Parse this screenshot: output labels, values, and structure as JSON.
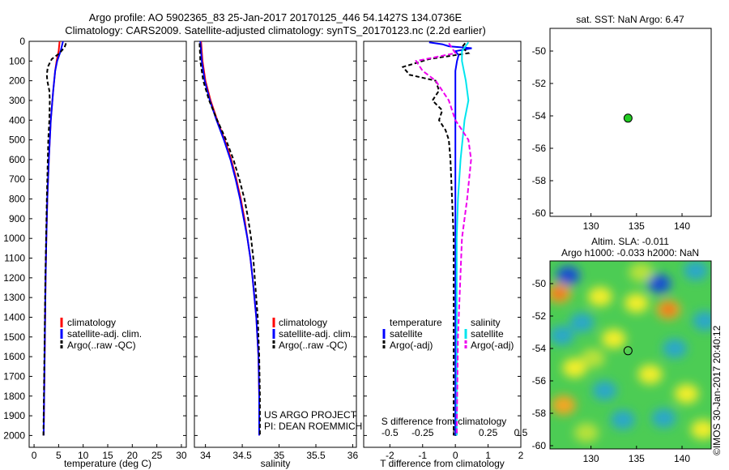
{
  "header": {
    "line1": "Argo profile: AO 5902365_83 25-Jan-2017 20170125_446 54.1427S 134.0736E",
    "line2": "Climatology: CARS2009. Satellite-adjusted climatology: synTS_20170123.nc (2.2d earlier)"
  },
  "colors": {
    "clim": "#ff0000",
    "sat": "#0000ff",
    "argo": "#000000",
    "sal_sat": "#00e5ee",
    "sal_argo": "#ee00ee",
    "dot": "#22cc22"
  },
  "chart_data": [
    {
      "type": "line",
      "id": "temperature",
      "xlabel": "temperature (deg C)",
      "xlim": [
        -1,
        31
      ],
      "xticks": [
        "0",
        "5",
        "10",
        "15",
        "20",
        "25",
        "30"
      ],
      "xtick_values": [
        0,
        5,
        10,
        15,
        20,
        25,
        30
      ],
      "ylim": [
        0,
        2060
      ],
      "yticks": [
        "0",
        "100",
        "200",
        "300",
        "400",
        "500",
        "600",
        "700",
        "800",
        "900",
        "1000",
        "1100",
        "1200",
        "1300",
        "1400",
        "1500",
        "1600",
        "1700",
        "1800",
        "1900",
        "2000"
      ],
      "ytick_values": [
        0,
        100,
        200,
        300,
        400,
        500,
        600,
        700,
        800,
        900,
        1000,
        1100,
        1200,
        1300,
        1400,
        1500,
        1600,
        1700,
        1800,
        1900,
        2000
      ],
      "legend": [
        "climatology",
        "satellite-adj. clim.",
        "Argo(..raw -QC)"
      ],
      "series": [
        {
          "name": "climatology",
          "color": "#ff0000",
          "dash": "",
          "depth": [
            0,
            50,
            100,
            150,
            250,
            400,
            600,
            800,
            1000,
            1200,
            1500,
            1800,
            2000
          ],
          "values": [
            5.2,
            5.0,
            4.6,
            4.3,
            3.9,
            3.4,
            3.0,
            2.7,
            2.5,
            2.35,
            2.2,
            2.05,
            1.95
          ]
        },
        {
          "name": "satellite-adj. clim.",
          "color": "#0000ff",
          "dash": "",
          "depth": [
            0,
            50,
            100,
            150,
            250,
            400,
            600,
            800,
            1000,
            1200,
            1500,
            1800,
            2000
          ],
          "values": [
            5.9,
            5.4,
            4.7,
            4.3,
            3.9,
            3.4,
            3.0,
            2.7,
            2.5,
            2.35,
            2.2,
            2.05,
            1.95
          ]
        },
        {
          "name": "Argo(..raw -QC)",
          "color": "#000000",
          "dash": "5,3",
          "depth": [
            10,
            30,
            60,
            90,
            130,
            170,
            200,
            250,
            300,
            400,
            500,
            600,
            800,
            1000,
            1200,
            1500,
            1800,
            2000
          ],
          "values": [
            6.5,
            6.2,
            5.2,
            3.6,
            2.8,
            2.6,
            2.7,
            3.1,
            3.2,
            3.1,
            2.9,
            2.8,
            2.6,
            2.45,
            2.3,
            2.15,
            2.0,
            1.9
          ]
        }
      ]
    },
    {
      "type": "line",
      "id": "salinity",
      "xlabel": "salinity",
      "xlim": [
        33.85,
        36.05
      ],
      "xticks": [
        "34",
        "34.5",
        "35",
        "35.5",
        "36"
      ],
      "xtick_values": [
        34,
        34.5,
        35,
        35.5,
        36
      ],
      "ylim": [
        0,
        2060
      ],
      "legend": [
        "climatology",
        "satellite-adj. clim.",
        "Argo(..raw -QC)"
      ],
      "series": [
        {
          "name": "climatology",
          "color": "#ff0000",
          "dash": "",
          "depth": [
            0,
            100,
            200,
            300,
            400,
            500,
            600,
            700,
            800,
            900,
            1000,
            1100,
            1200,
            1400,
            1600,
            1800,
            2000
          ],
          "values": [
            33.94,
            33.96,
            34.0,
            34.07,
            34.16,
            34.26,
            34.35,
            34.42,
            34.48,
            34.53,
            34.57,
            34.61,
            34.64,
            34.69,
            34.72,
            34.73,
            34.73
          ]
        },
        {
          "name": "satellite-adj. clim.",
          "color": "#0000ff",
          "dash": "",
          "depth": [
            0,
            100,
            200,
            300,
            400,
            500,
            600,
            700,
            800,
            900,
            1000,
            1100,
            1200,
            1400,
            1600,
            1800,
            2000
          ],
          "values": [
            33.93,
            33.95,
            33.99,
            34.06,
            34.15,
            34.25,
            34.34,
            34.41,
            34.47,
            34.52,
            34.57,
            34.61,
            34.64,
            34.69,
            34.72,
            34.73,
            34.73
          ]
        },
        {
          "name": "Argo(..raw -QC)",
          "color": "#000000",
          "dash": "5,3",
          "depth": [
            10,
            100,
            200,
            300,
            400,
            500,
            600,
            700,
            800,
            900,
            1000,
            1100,
            1200,
            1400,
            1600,
            1800,
            2000
          ],
          "values": [
            33.92,
            33.93,
            33.97,
            34.05,
            34.16,
            34.28,
            34.38,
            34.46,
            34.53,
            34.58,
            34.62,
            34.65,
            34.67,
            34.71,
            34.73,
            34.74,
            34.74
          ]
        }
      ]
    },
    {
      "type": "line",
      "id": "differences",
      "xlabel": "T difference from climatology",
      "xlabel2": "S difference from climatology",
      "xlim": [
        -2.8,
        2.0
      ],
      "xticks": [
        "-2",
        "-1",
        "0",
        "1",
        "2"
      ],
      "xtick_values": [
        -2,
        -1,
        0,
        1,
        2
      ],
      "s_xticks": [
        "-0.5",
        "-0.25",
        "0",
        "0.25",
        "0.5"
      ],
      "s_xtick_values": [
        -0.5,
        -0.25,
        0,
        0.25,
        0.5
      ],
      "ylim": [
        0,
        2060
      ],
      "legend_temperature": {
        "heading": "temperature",
        "items": [
          "satellite",
          "Argo(-adj)"
        ]
      },
      "legend_salinity": {
        "heading": "salinity",
        "items": [
          "satellite",
          "Argo(-adj)"
        ]
      },
      "series": [
        {
          "name": "T satellite",
          "color": "#0000ff",
          "dash": "",
          "depth": [
            5,
            15,
            25,
            35,
            50,
            70,
            100,
            150,
            200,
            300,
            500,
            700,
            1000,
            1500,
            2000
          ],
          "values": [
            -0.8,
            -0.4,
            -0.2,
            0.5,
            0.0,
            0.1,
            0.05,
            0.0,
            0.0,
            0.0,
            0.0,
            0.0,
            0.0,
            0.0,
            0.0
          ]
        },
        {
          "name": "T Argo(-adj)",
          "color": "#000000",
          "dash": "5,3",
          "depth": [
            10,
            30,
            60,
            90,
            100,
            130,
            170,
            200,
            250,
            300,
            350,
            400,
            450,
            500,
            600,
            800,
            1000,
            1500,
            2000
          ],
          "values": [
            0.3,
            0.2,
            0.4,
            -0.8,
            -1.0,
            -1.6,
            -1.4,
            -0.6,
            -0.5,
            -0.7,
            -0.4,
            -0.5,
            -0.3,
            -0.2,
            -0.15,
            -0.1,
            -0.05,
            -0.05,
            -0.05
          ]
        },
        {
          "name": "S satellite",
          "color": "#00e5ee",
          "dash": "",
          "depth": [
            5,
            50,
            100,
            200,
            300,
            400,
            600,
            800,
            1000,
            1500,
            2000
          ],
          "values": [
            0.1,
            0.05,
            0.05,
            0.08,
            0.1,
            0.07,
            0.04,
            0.02,
            0.01,
            0.01,
            0.01
          ]
        },
        {
          "name": "S Argo(-adj)",
          "color": "#ee00ee",
          "dash": "6,3",
          "depth": [
            10,
            60,
            100,
            150,
            200,
            300,
            400,
            450,
            500,
            600,
            800,
            1000,
            1500,
            2000
          ],
          "values": [
            -0.05,
            0.0,
            -0.3,
            -0.25,
            -0.15,
            -0.05,
            0.0,
            0.05,
            0.1,
            0.12,
            0.09,
            0.05,
            0.02,
            0.01
          ]
        }
      ]
    },
    {
      "type": "scatter",
      "id": "sst-map",
      "title": "sat. SST: NaN Argo: 6.47",
      "xlim": [
        125.5,
        143.2
      ],
      "ylim": [
        -60.2,
        -48.6
      ],
      "xticks": [
        "130",
        "135",
        "140"
      ],
      "xtick_values": [
        130,
        135,
        140
      ],
      "yticks": [
        "-50",
        "-52",
        "-54",
        "-56",
        "-58",
        "-60"
      ],
      "ytick_values": [
        -50,
        -52,
        -54,
        -56,
        -58,
        -60
      ],
      "points": [
        {
          "x": 134.07,
          "y": -54.14
        }
      ]
    },
    {
      "type": "heatmap",
      "id": "sla-map",
      "title1": "Altim. SLA: -0.011",
      "title2": "Argo h1000: -0.033 h2000: NaN",
      "xlim": [
        125.5,
        143.2
      ],
      "ylim": [
        -60.2,
        -48.6
      ],
      "xticks": [
        "130",
        "135",
        "140"
      ],
      "xtick_values": [
        130,
        135,
        140
      ],
      "yticks": [
        "-50",
        "-52",
        "-54",
        "-56",
        "-58",
        "-60"
      ],
      "ytick_values": [
        -50,
        -52,
        -54,
        -56,
        -58,
        -60
      ],
      "points": [
        {
          "x": 134.07,
          "y": -54.14
        }
      ],
      "blobs": [
        {
          "x": 127.5,
          "y": -49.5,
          "v": -1.0
        },
        {
          "x": 137.5,
          "y": -50.0,
          "v": -0.9
        },
        {
          "x": 141.5,
          "y": -49.2,
          "v": -0.7
        },
        {
          "x": 131.0,
          "y": -50.8,
          "v": 0.6
        },
        {
          "x": 126.5,
          "y": -50.6,
          "v": 0.9
        },
        {
          "x": 135.0,
          "y": -51.2,
          "v": 0.7
        },
        {
          "x": 129.0,
          "y": -52.4,
          "v": -0.5
        },
        {
          "x": 132.5,
          "y": -53.4,
          "v": 0.5
        },
        {
          "x": 138.5,
          "y": -51.6,
          "v": 1.0
        },
        {
          "x": 142.5,
          "y": -52.3,
          "v": -0.6
        },
        {
          "x": 126.8,
          "y": -53.2,
          "v": -0.4
        },
        {
          "x": 139.2,
          "y": -54.0,
          "v": -0.5
        },
        {
          "x": 128.2,
          "y": -55.2,
          "v": 0.7
        },
        {
          "x": 136.5,
          "y": -55.6,
          "v": 0.6
        },
        {
          "x": 131.5,
          "y": -56.6,
          "v": -0.5
        },
        {
          "x": 140.5,
          "y": -56.8,
          "v": 0.5
        },
        {
          "x": 127.0,
          "y": -57.5,
          "v": 0.8
        },
        {
          "x": 133.5,
          "y": -58.4,
          "v": -0.4
        },
        {
          "x": 138.0,
          "y": -58.3,
          "v": -0.5
        },
        {
          "x": 142.3,
          "y": -59.0,
          "v": 0.6
        },
        {
          "x": 129.5,
          "y": -59.2,
          "v": 0.4
        },
        {
          "x": 135.5,
          "y": -49.3,
          "v": 0.4
        },
        {
          "x": 130.2,
          "y": -54.6,
          "v": 0.3
        }
      ]
    }
  ],
  "credit": {
    "line1": "US ARGO PROJECT",
    "line2": "PI: DEAN ROEMMICH",
    "watermark": "©IMOS 30-Jan-2017 20:40:12"
  }
}
